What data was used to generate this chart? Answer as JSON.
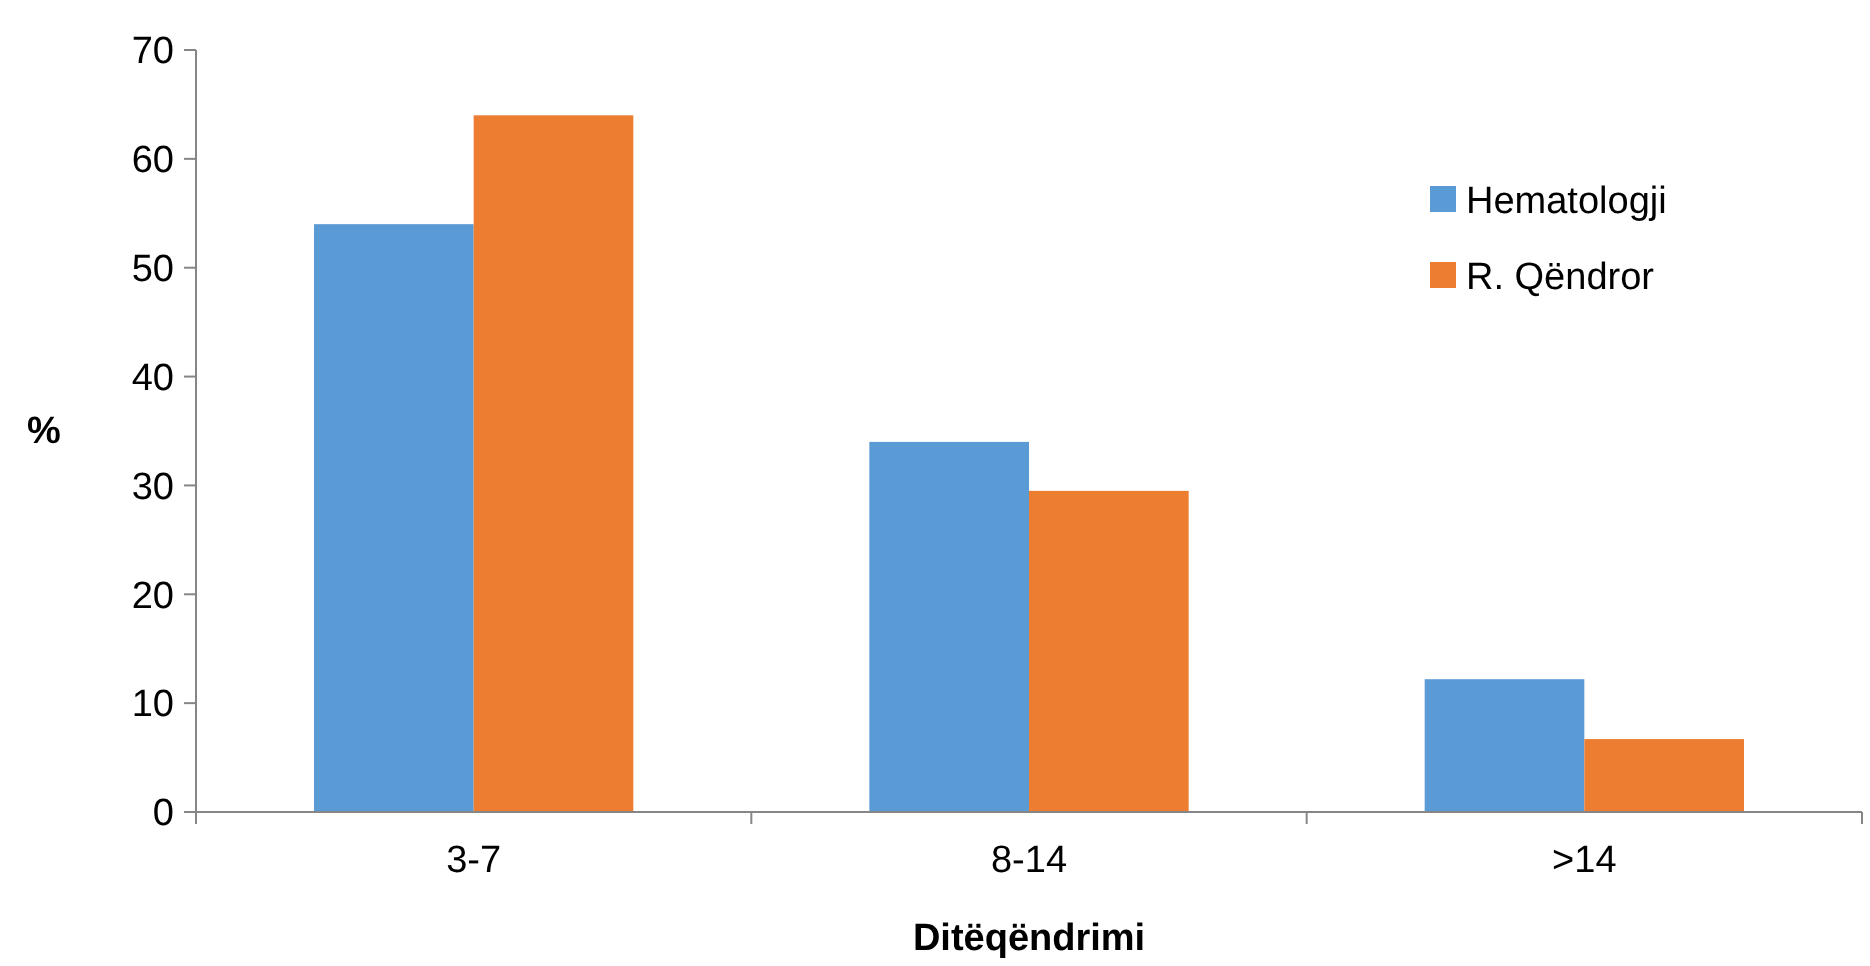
{
  "chart_data": {
    "type": "bar",
    "xlabel": "Ditëqëndrimi",
    "ylabel": "%",
    "categories": [
      "3-7",
      "8-14",
      ">14"
    ],
    "series": [
      {
        "name": "Hematologji",
        "color": "#5b9bd5",
        "values": [
          54,
          34,
          12.2
        ]
      },
      {
        "name": "R. Qëndror",
        "color": "#ed7d31",
        "values": [
          64,
          29.5,
          6.7
        ]
      }
    ],
    "ylim": [
      0,
      70
    ],
    "yticks": [
      0,
      10,
      20,
      30,
      40,
      50,
      60,
      70
    ],
    "grid": false,
    "legend": "top right"
  }
}
